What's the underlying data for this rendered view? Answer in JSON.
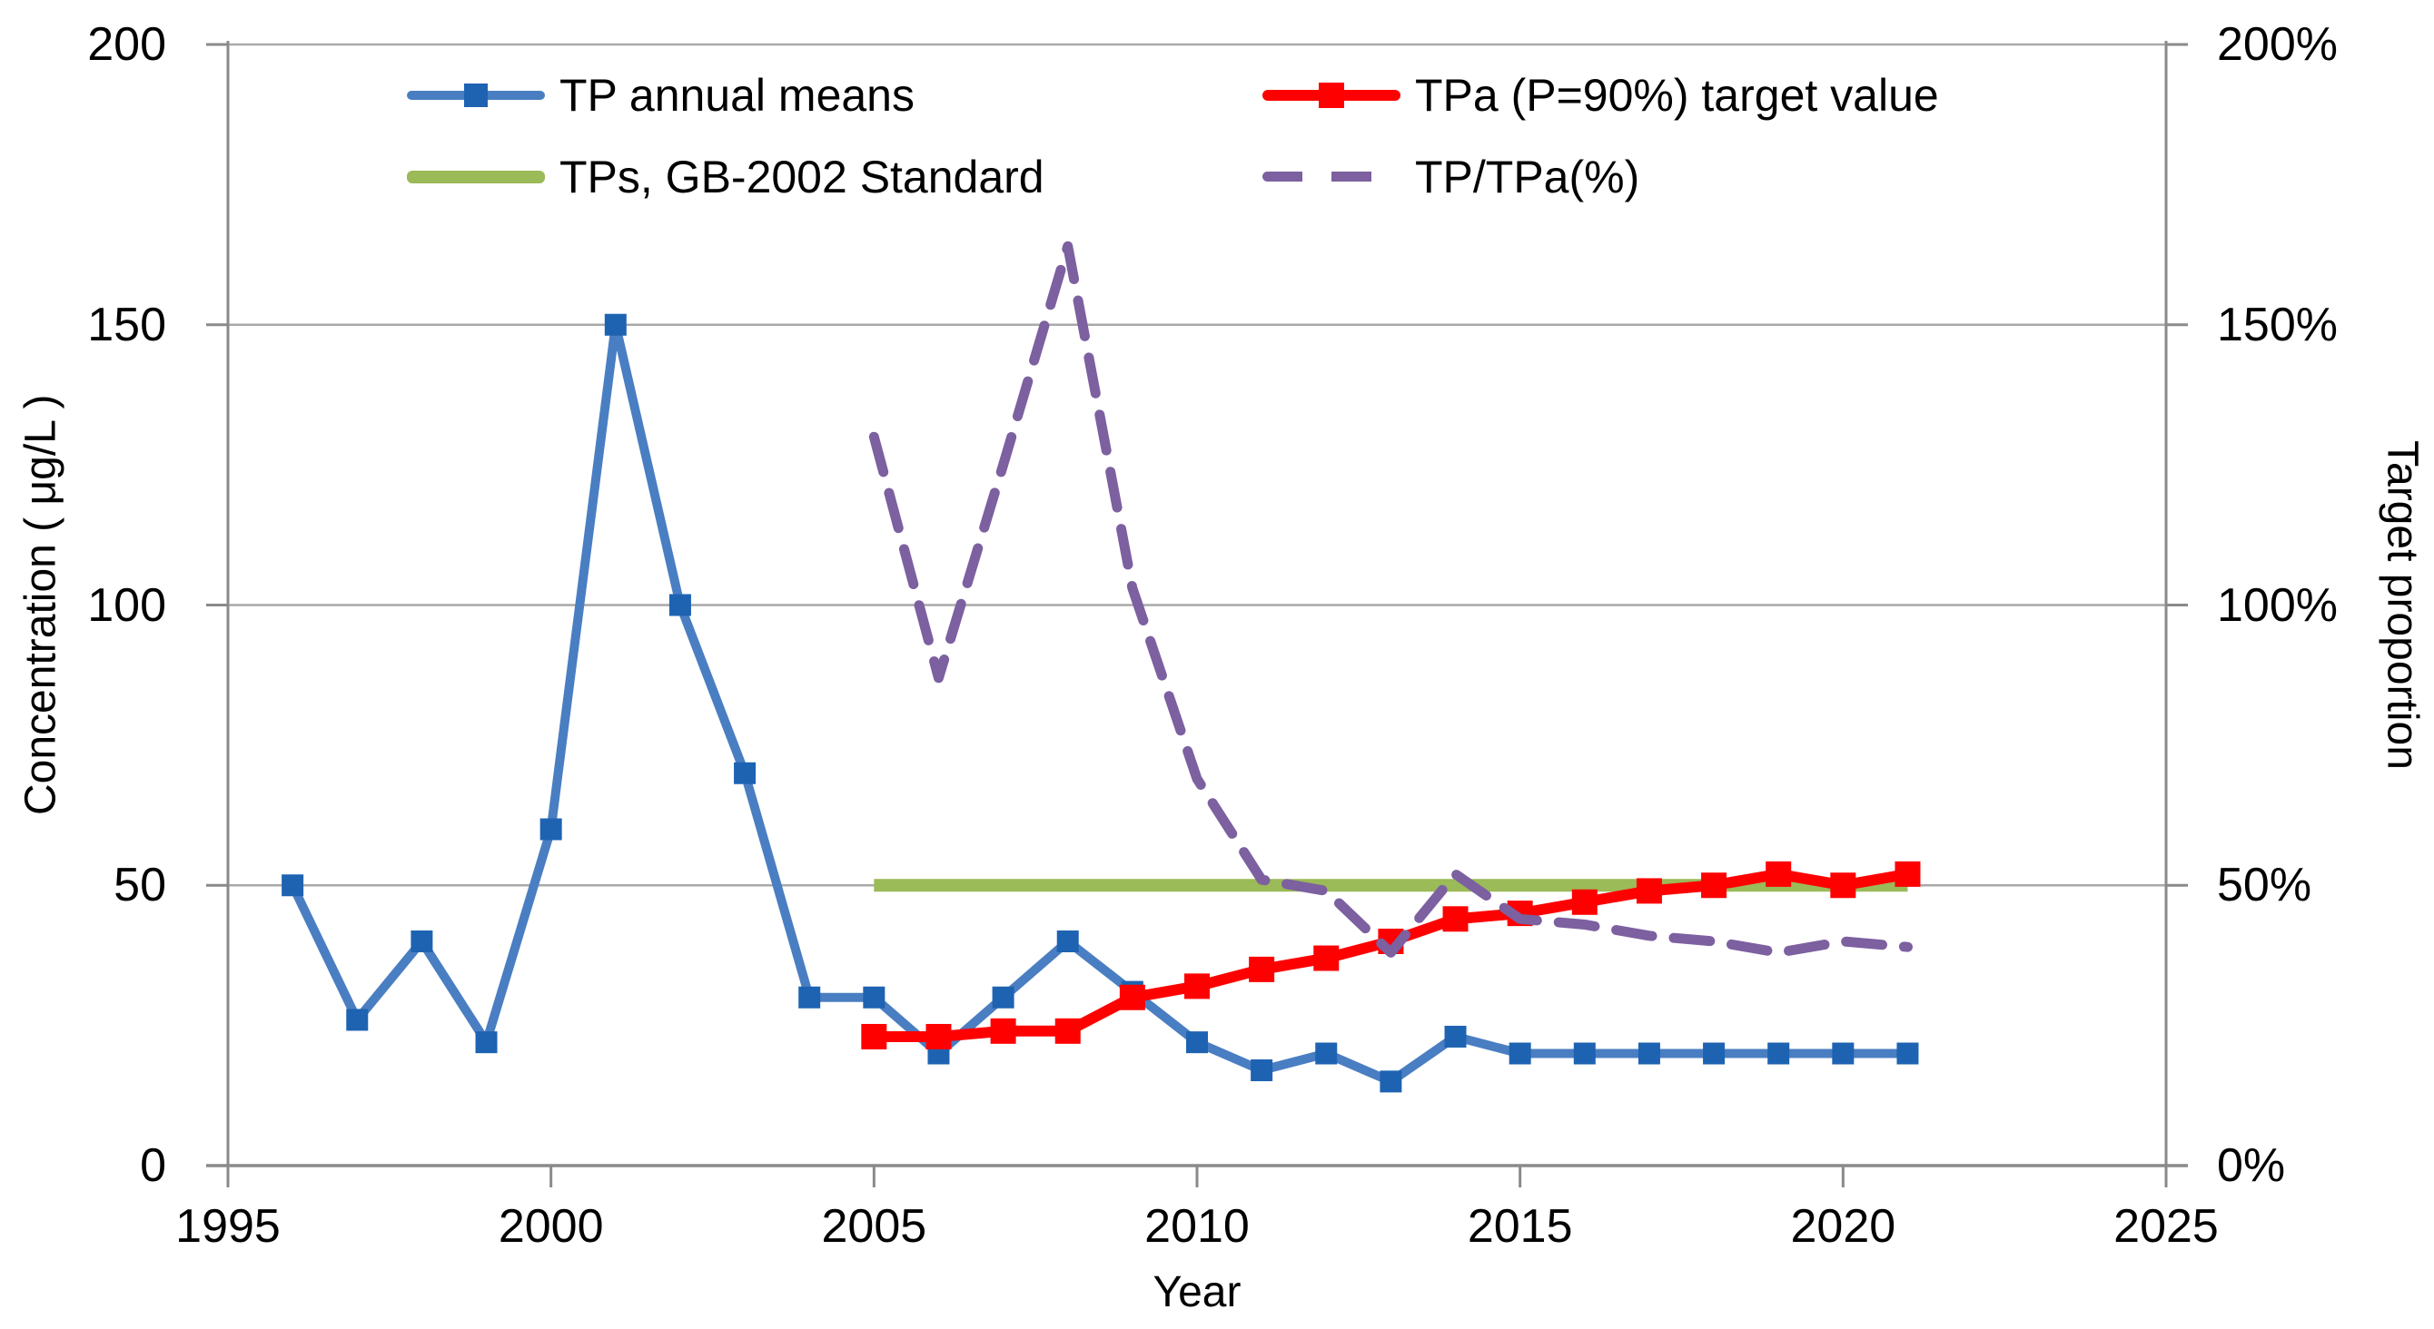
{
  "chart_data": {
    "type": "line",
    "title": "",
    "grid": "horizontal",
    "legend_position": "top",
    "colors": {
      "grid": "#A9A9A9",
      "axis": "#8A8A8A",
      "text": "#000000"
    },
    "x_axis": {
      "label": "Year",
      "min": 1995,
      "max": 2025,
      "ticks": [
        1995,
        2000,
        2005,
        2010,
        2015,
        2020,
        2025
      ],
      "tick_labels": [
        "1995",
        "2000",
        "2005",
        "2010",
        "2015",
        "2020",
        "2025"
      ]
    },
    "y_axis_left": {
      "label": "Concentration ( μg/L )",
      "min": 0,
      "max": 200,
      "ticks": [
        0,
        50,
        100,
        150,
        200
      ],
      "tick_labels": [
        "0",
        "50",
        "100",
        "150",
        "200"
      ]
    },
    "y_axis_right": {
      "label": "Target proportion",
      "min": 0,
      "max": 200,
      "ticks": [
        0,
        50,
        100,
        150,
        200
      ],
      "tick_labels": [
        "0%",
        "50%",
        "100%",
        "150%",
        "200%"
      ]
    },
    "series": [
      {
        "name": "TP annual means",
        "axis": "left",
        "style": "solid",
        "marker": "square",
        "color": "#4A7EC2",
        "marker_color": "#1E63B2",
        "x": [
          1996,
          1997,
          1998,
          1999,
          2000,
          2001,
          2002,
          2003,
          2004,
          2005,
          2006,
          2007,
          2008,
          2009,
          2010,
          2011,
          2012,
          2013,
          2014,
          2015,
          2016,
          2017,
          2018,
          2019,
          2020,
          2021
        ],
        "values": [
          50,
          26,
          40,
          22,
          60,
          150,
          100,
          70,
          30,
          30,
          20,
          30,
          40,
          31,
          22,
          17,
          20,
          15,
          23,
          20,
          20,
          20,
          20,
          20,
          20,
          20
        ]
      },
      {
        "name": "TPs, GB-2002 Standard",
        "axis": "left",
        "style": "solid",
        "marker": "none",
        "color": "#9BBA58",
        "x": [
          2005,
          2021
        ],
        "values": [
          50,
          50
        ]
      },
      {
        "name": "TPa (P=90%) target value",
        "axis": "left",
        "style": "solid",
        "marker": "square",
        "color": "#FE0000",
        "marker_color": "#FE0000",
        "x": [
          2005,
          2006,
          2007,
          2008,
          2009,
          2010,
          2011,
          2012,
          2013,
          2014,
          2015,
          2016,
          2017,
          2018,
          2019,
          2020,
          2021
        ],
        "values": [
          23,
          23,
          24,
          24,
          30,
          32,
          35,
          37,
          40,
          44,
          45,
          47,
          49,
          50,
          52,
          50,
          52
        ]
      },
      {
        "name": "TP/TPa(%)",
        "axis": "right",
        "style": "dashed",
        "marker": "none",
        "color": "#7C60A0",
        "x": [
          2005,
          2006,
          2007,
          2008,
          2009,
          2010,
          2011,
          2012,
          2013,
          2014,
          2015,
          2016,
          2017,
          2018,
          2019,
          2020,
          2021
        ],
        "values": [
          130,
          87,
          125,
          164,
          103,
          69,
          51,
          49,
          38,
          52,
          44,
          43,
          41,
          40,
          38,
          40,
          39
        ]
      }
    ]
  }
}
